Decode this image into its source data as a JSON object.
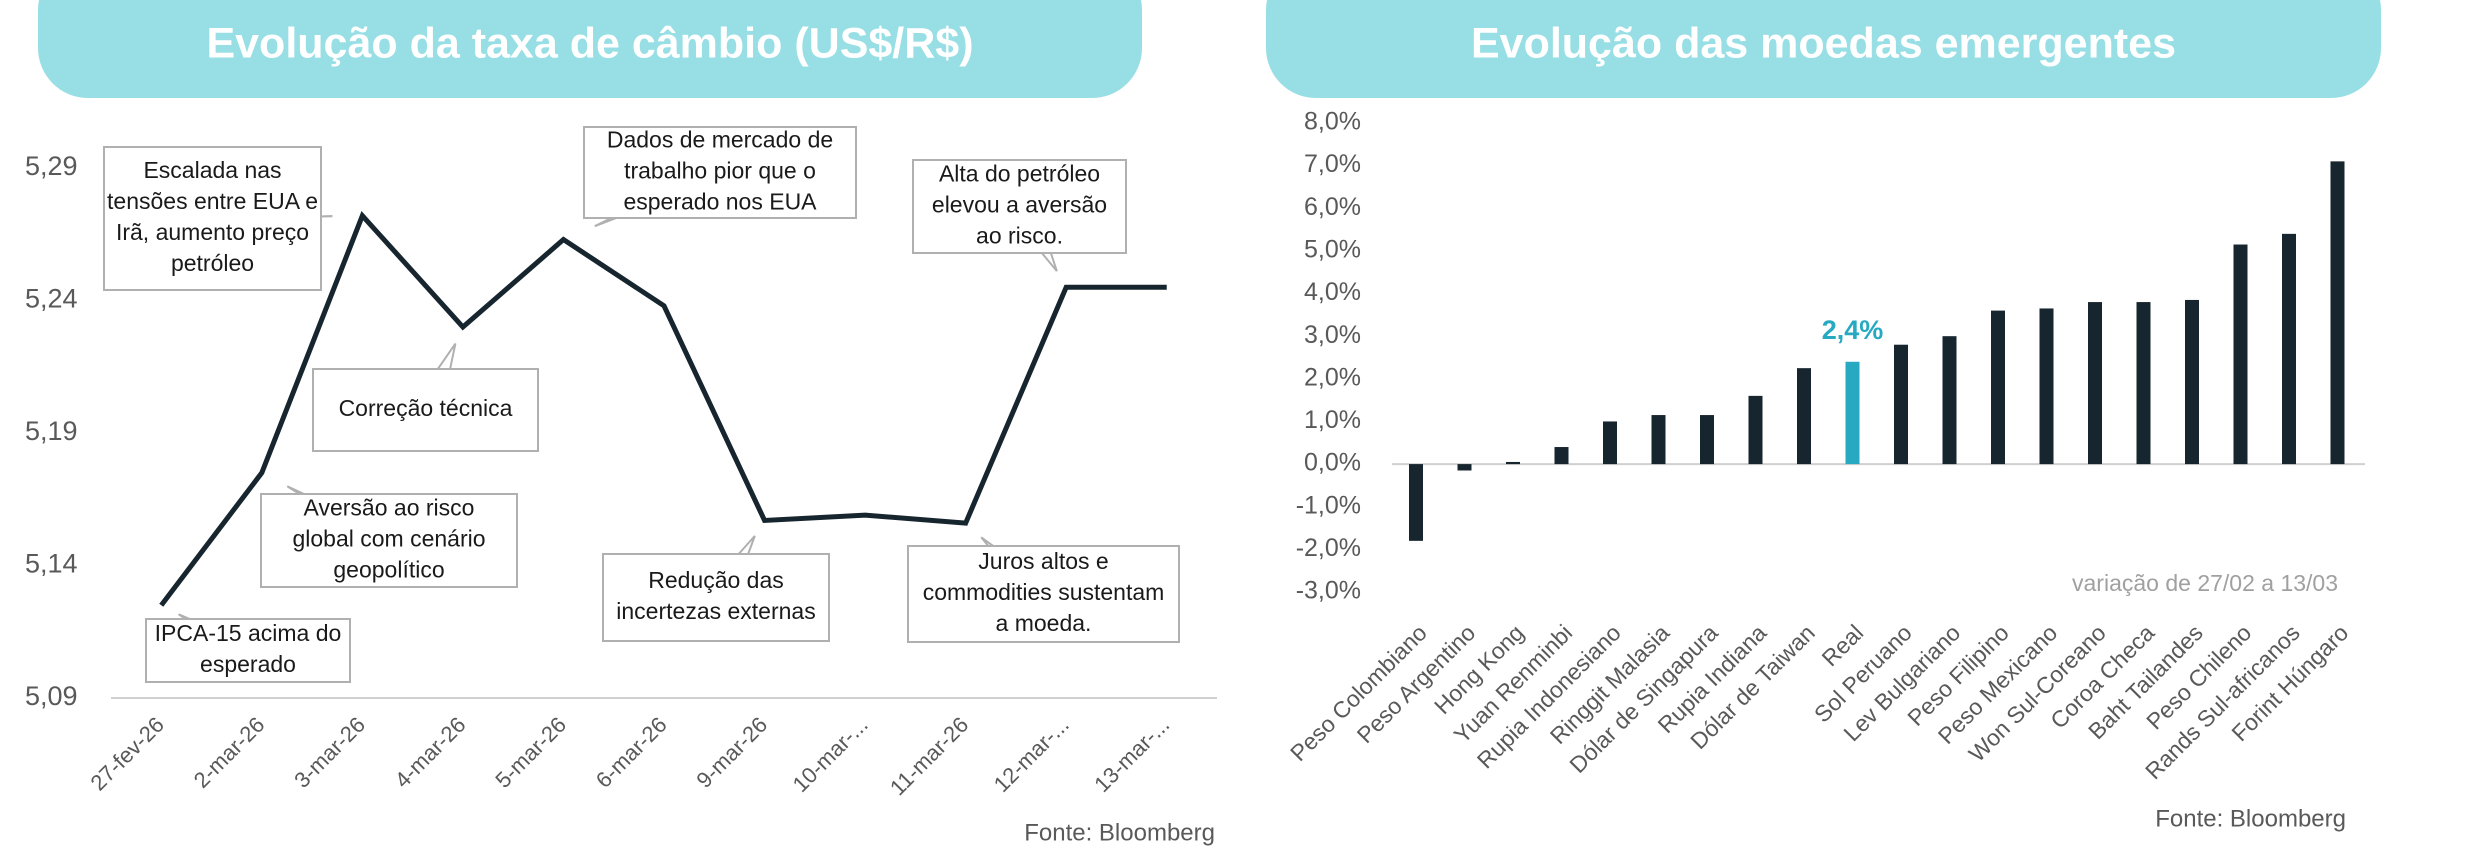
{
  "chart_data": [
    {
      "type": "line",
      "title": "Evolução da taxa de câmbio (US$/R$)",
      "categories": [
        "27-fev-26",
        "2-mar-26",
        "3-mar-26",
        "4-mar-26",
        "5-mar-26",
        "6-mar-26",
        "9-mar-26",
        "10-mar-...",
        "11-mar-26",
        "12-mar-...",
        "13-mar-..."
      ],
      "values": [
        5.125,
        5.175,
        5.272,
        5.23,
        5.263,
        5.238,
        5.157,
        5.159,
        5.156,
        5.245,
        5.245
      ],
      "color": "#17252e",
      "ylim": [
        5.09,
        5.29
      ],
      "yticks": [
        {
          "value": 5.09,
          "label": "5,09"
        },
        {
          "value": 5.14,
          "label": "5,14"
        },
        {
          "value": 5.19,
          "label": "5,19"
        },
        {
          "value": 5.24,
          "label": "5,24"
        },
        {
          "value": 5.29,
          "label": "5,29"
        }
      ],
      "annotations": [
        [
          "Escalada nas",
          "tensões entre EUA e",
          "Irã, aumento preço",
          "petróleo"
        ],
        [
          "Correção técnica"
        ],
        [
          "Aversão ao risco",
          "global com cenário",
          "geopolítico"
        ],
        [
          "IPCA-15 acima do",
          "esperado"
        ],
        [
          "Dados de mercado de",
          "trabalho pior que o",
          "esperado nos EUA"
        ],
        [
          "Redução das",
          "incertezas externas"
        ],
        [
          "Alta do petróleo",
          "elevou a aversão",
          "ao risco."
        ],
        [
          "Juros altos e",
          "commodities sustentam",
          "a moeda."
        ]
      ],
      "source": "Fonte: Bloomberg"
    },
    {
      "type": "bar",
      "title": "Evolução das moedas emergentes",
      "categories": [
        "Peso Colombiano",
        "Peso Argentino",
        "Hong Kong",
        "Yuan Renminbi",
        "Rupia Indonesiano",
        "Ringgit Malasia",
        "Dólar de Singapura",
        "Rupia Indiana",
        "Dólar de Taiwan",
        "Real",
        "Sol Peruano",
        "Lev Bulgariano",
        "Peso Filipino",
        "Peso Mexicano",
        "Won Sul-Coreano",
        "Coroa Checa",
        "Baht Tailandes",
        "Peso Chileno",
        "Rands Sul-africanos",
        "Forint Húngaro"
      ],
      "values": [
        -1.8,
        -0.15,
        0.05,
        0.4,
        1.0,
        1.15,
        1.15,
        1.6,
        2.25,
        2.4,
        2.8,
        3.0,
        3.6,
        3.65,
        3.8,
        3.8,
        3.85,
        5.15,
        5.4,
        7.1
      ],
      "value_labels": [
        null,
        null,
        null,
        null,
        null,
        null,
        null,
        null,
        null,
        "2,4%",
        null,
        null,
        null,
        null,
        null,
        null,
        null,
        null,
        null,
        null
      ],
      "colors": [
        "#17252e",
        "#17252e",
        "#17252e",
        "#17252e",
        "#17252e",
        "#17252e",
        "#17252e",
        "#17252e",
        "#17252e",
        "#26a9c1",
        "#17252e",
        "#17252e",
        "#17252e",
        "#17252e",
        "#17252e",
        "#17252e",
        "#17252e",
        "#17252e",
        "#17252e",
        "#17252e"
      ],
      "ylim": [
        -3,
        8
      ],
      "yticks": [
        {
          "value": -3,
          "label": "-3,0%"
        },
        {
          "value": -2,
          "label": "-2,0%"
        },
        {
          "value": -1,
          "label": "-1,0%"
        },
        {
          "value": 0,
          "label": "0,0%"
        },
        {
          "value": 1,
          "label": "1,0%"
        },
        {
          "value": 2,
          "label": "2,0%"
        },
        {
          "value": 3,
          "label": "3,0%"
        },
        {
          "value": 4,
          "label": "4,0%"
        },
        {
          "value": 5,
          "label": "5,0%"
        },
        {
          "value": 6,
          "label": "6,0%"
        },
        {
          "value": 7,
          "label": "7,0%"
        },
        {
          "value": 8,
          "label": "8,0%"
        }
      ],
      "note": "variação de 27/02 a 13/03",
      "source": "Fonte: Bloomberg"
    }
  ]
}
